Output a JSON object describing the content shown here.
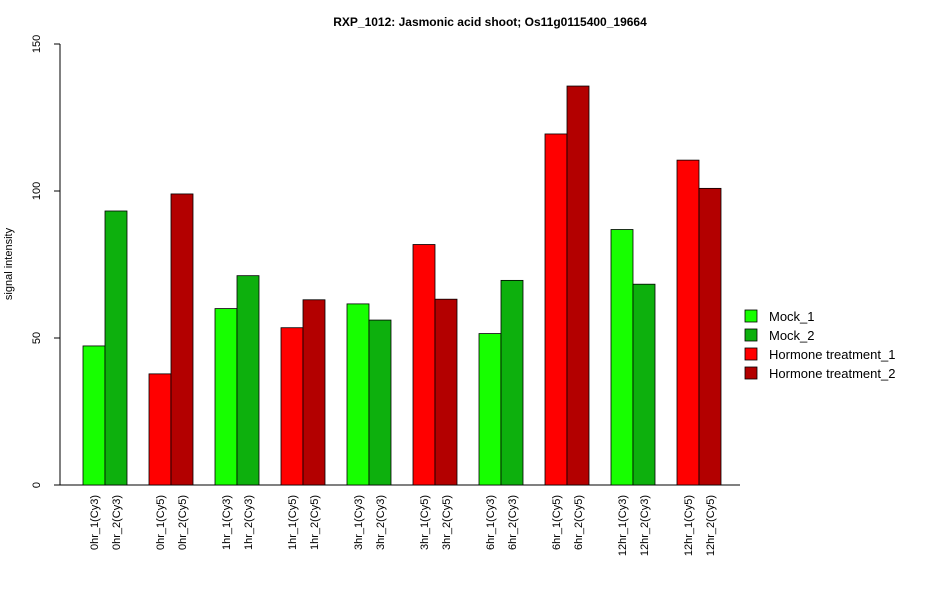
{
  "chart_data": {
    "type": "bar",
    "title": "RXP_1012: Jasmonic acid shoot; Os11g0115400_19664",
    "xlabel": "",
    "ylabel": "signal intensity",
    "ylim": [
      0,
      150
    ],
    "yticks": [
      0,
      50,
      100,
      150
    ],
    "grid": false,
    "legend_position": "right",
    "series": [
      {
        "name": "Mock_1",
        "color": "#17ff00"
      },
      {
        "name": "Mock_2",
        "color": "#0db00d"
      },
      {
        "name": "Hormone treatment_1",
        "color": "#ff0000"
      },
      {
        "name": "Hormone treatment_2",
        "color": "#b30000"
      }
    ],
    "bars": [
      {
        "label": "0hr_1(Cy3)",
        "value": 47.3,
        "series": 0
      },
      {
        "label": "0hr_2(Cy3)",
        "value": 93.2,
        "series": 1
      },
      {
        "label": "0hr_1(Cy5)",
        "value": 37.8,
        "series": 2
      },
      {
        "label": "0hr_2(Cy5)",
        "value": 99.0,
        "series": 3
      },
      {
        "label": "1hr_1(Cy3)",
        "value": 60.0,
        "series": 0
      },
      {
        "label": "1hr_2(Cy3)",
        "value": 71.2,
        "series": 1
      },
      {
        "label": "1hr_1(Cy5)",
        "value": 53.5,
        "series": 2
      },
      {
        "label": "1hr_2(Cy5)",
        "value": 63.0,
        "series": 3
      },
      {
        "label": "3hr_1(Cy3)",
        "value": 61.6,
        "series": 0
      },
      {
        "label": "3hr_2(Cy3)",
        "value": 56.1,
        "series": 1
      },
      {
        "label": "3hr_1(Cy5)",
        "value": 81.8,
        "series": 2
      },
      {
        "label": "3hr_2(Cy5)",
        "value": 63.2,
        "series": 3
      },
      {
        "label": "6hr_1(Cy3)",
        "value": 51.5,
        "series": 0
      },
      {
        "label": "6hr_2(Cy3)",
        "value": 69.6,
        "series": 1
      },
      {
        "label": "6hr_1(Cy5)",
        "value": 119.4,
        "series": 2
      },
      {
        "label": "6hr_2(Cy5)",
        "value": 135.7,
        "series": 3
      },
      {
        "label": "12hr_1(Cy3)",
        "value": 86.9,
        "series": 0
      },
      {
        "label": "12hr_2(Cy3)",
        "value": 68.3,
        "series": 1
      },
      {
        "label": "12hr_1(Cy5)",
        "value": 110.5,
        "series": 2
      },
      {
        "label": "12hr_2(Cy5)",
        "value": 100.9,
        "series": 3
      }
    ]
  }
}
